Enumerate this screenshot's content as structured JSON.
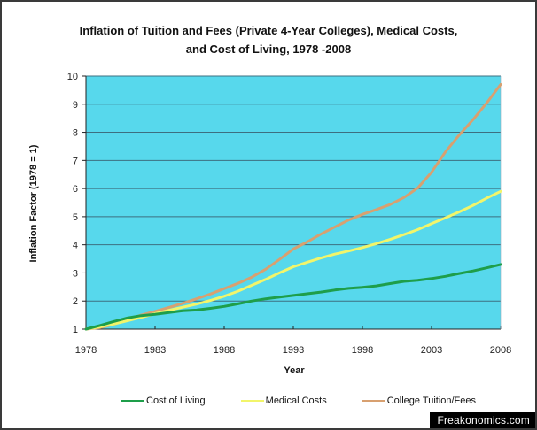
{
  "chart_data": {
    "type": "line",
    "title": "Inflation of Tuition  and Fees (Private 4-Year Colleges), Medical Costs, and Cost of Living, 1978 -2008",
    "title_lines": [
      "Inflation of Tuition  and Fees (Private 4-Year Colleges), Medical Costs,",
      "and Cost of Living, 1978 -2008"
    ],
    "xlabel": "Year",
    "ylabel": "Inflation Factor (1978 = 1)",
    "xlim": [
      1978,
      2008
    ],
    "ylim": [
      1,
      10
    ],
    "x_ticks": [
      "1978",
      "1983",
      "1988",
      "1993",
      "1998",
      "2003",
      "2008"
    ],
    "y_ticks": [
      "1",
      "2",
      "3",
      "4",
      "5",
      "6",
      "7",
      "8",
      "9",
      "10"
    ],
    "grid": "horizontal",
    "legend_position": "bottom",
    "plot_background": "#57D8EC",
    "x": [
      1978,
      1979,
      1980,
      1981,
      1982,
      1983,
      1984,
      1985,
      1986,
      1987,
      1988,
      1989,
      1990,
      1991,
      1992,
      1993,
      1994,
      1995,
      1996,
      1997,
      1998,
      1999,
      2000,
      2001,
      2002,
      2003,
      2004,
      2005,
      2006,
      2007,
      2008
    ],
    "series": [
      {
        "name": "Cost of Living",
        "color": "#1E9E4A",
        "values": [
          1.0,
          1.13,
          1.27,
          1.4,
          1.48,
          1.53,
          1.59,
          1.65,
          1.68,
          1.74,
          1.81,
          1.9,
          2.0,
          2.08,
          2.14,
          2.2,
          2.26,
          2.32,
          2.39,
          2.45,
          2.49,
          2.54,
          2.62,
          2.7,
          2.74,
          2.8,
          2.88,
          2.98,
          3.07,
          3.18,
          3.3
        ]
      },
      {
        "name": "Medical Costs",
        "color": "#F2F56A",
        "values": [
          1.0,
          1.08,
          1.18,
          1.3,
          1.42,
          1.55,
          1.67,
          1.78,
          1.89,
          2.02,
          2.17,
          2.35,
          2.56,
          2.77,
          3.0,
          3.22,
          3.38,
          3.53,
          3.67,
          3.78,
          3.9,
          4.04,
          4.19,
          4.36,
          4.54,
          4.75,
          4.96,
          5.17,
          5.4,
          5.66,
          5.9
        ]
      },
      {
        "name": "College Tuition/Fees",
        "color": "#D8A070",
        "values": [
          1.0,
          1.05,
          1.17,
          1.33,
          1.5,
          1.63,
          1.77,
          1.92,
          2.08,
          2.25,
          2.44,
          2.63,
          2.85,
          3.13,
          3.48,
          3.85,
          4.1,
          4.38,
          4.63,
          4.88,
          5.08,
          5.25,
          5.43,
          5.68,
          6.02,
          6.58,
          7.3,
          7.9,
          8.45,
          9.05,
          9.7
        ]
      }
    ]
  },
  "legend": {
    "items": [
      {
        "label": "Cost of Living",
        "color": "#1E9E4A"
      },
      {
        "label": "Medical Costs",
        "color": "#F2F56A"
      },
      {
        "label": "College Tuition/Fees",
        "color": "#D8A070"
      }
    ]
  },
  "watermark": "Freakonomics.com"
}
